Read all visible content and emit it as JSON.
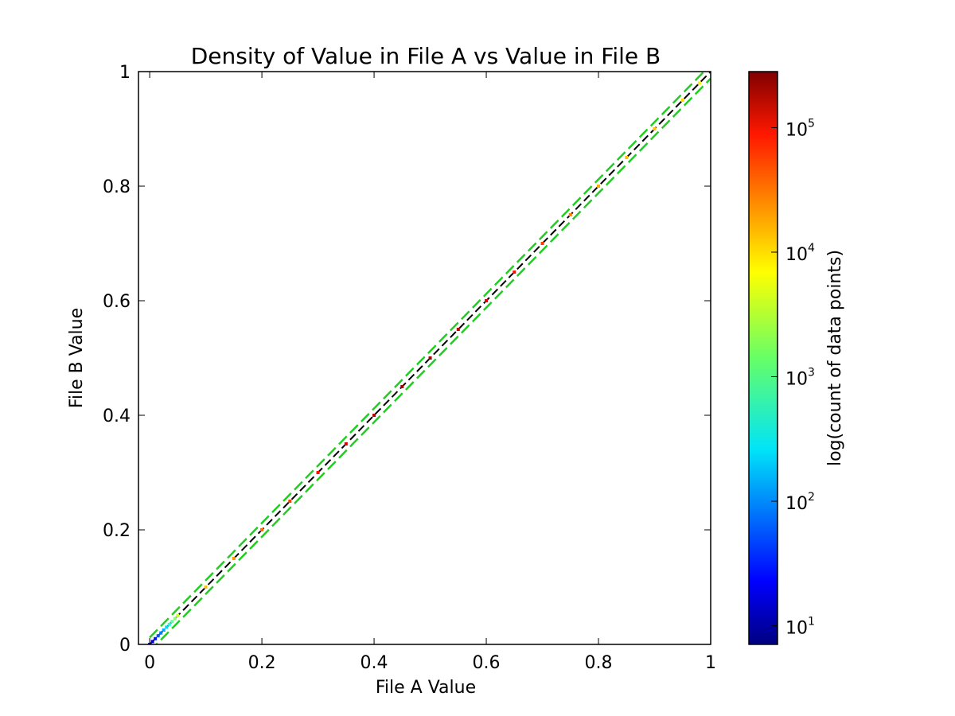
{
  "chart_data": {
    "type": "heatmap",
    "title": "Density of Value in File A vs Value in File B",
    "xlabel": "File A Value",
    "ylabel": "File B Value",
    "xlim": [
      -0.02,
      1.0
    ],
    "ylim": [
      0,
      1.0
    ],
    "x_ticks": [
      {
        "value": 0.0,
        "label": "0"
      },
      {
        "value": 0.2,
        "label": "0.2"
      },
      {
        "value": 0.4,
        "label": "0.4"
      },
      {
        "value": 0.6,
        "label": "0.6"
      },
      {
        "value": 0.8,
        "label": "0.8"
      },
      {
        "value": 1.0,
        "label": "1"
      }
    ],
    "y_ticks": [
      {
        "value": 0.0,
        "label": "0"
      },
      {
        "value": 0.2,
        "label": "0.2"
      },
      {
        "value": 0.4,
        "label": "0.4"
      },
      {
        "value": 0.6,
        "label": "0.6"
      },
      {
        "value": 0.8,
        "label": "0.8"
      },
      {
        "value": 1.0,
        "label": "1"
      }
    ],
    "grid": false,
    "reference_lines": [
      {
        "style": "dashed",
        "color": "#000000",
        "x": [
          0,
          1
        ],
        "y": [
          0,
          1
        ]
      },
      {
        "style": "dashed",
        "color": "#22cc22",
        "x": [
          0,
          1
        ],
        "y": [
          0.012,
          1.012
        ]
      },
      {
        "style": "dashed",
        "color": "#22cc22",
        "x": [
          0,
          1
        ],
        "y": [
          -0.012,
          0.988
        ]
      }
    ],
    "density": {
      "x": [
        0.0,
        0.005,
        0.01,
        0.015,
        0.02,
        0.025,
        0.03,
        0.035,
        0.04,
        0.045,
        0.05,
        0.1,
        0.15,
        0.2,
        0.25,
        0.3,
        0.35,
        0.4,
        0.45,
        0.5,
        0.55,
        0.6,
        0.65,
        0.7,
        0.75,
        0.8,
        0.85,
        0.9,
        0.95,
        0.98
      ],
      "log10_count": [
        1.0,
        1.2,
        1.5,
        1.8,
        2.0,
        2.2,
        2.4,
        2.7,
        3.0,
        3.2,
        3.5,
        4.0,
        4.2,
        4.4,
        4.6,
        4.8,
        5.0,
        5.2,
        5.3,
        5.3,
        5.2,
        5.0,
        4.8,
        4.6,
        4.3,
        4.1,
        4.0,
        4.0,
        3.9,
        3.8
      ]
    },
    "colorbar": {
      "label": "log(count of data points)",
      "colormap": "jet",
      "log_range": [
        0.85,
        5.45
      ],
      "ticks": [
        {
          "value": 1,
          "base": "10",
          "exp": "1"
        },
        {
          "value": 2,
          "base": "10",
          "exp": "2"
        },
        {
          "value": 3,
          "base": "10",
          "exp": "3"
        },
        {
          "value": 4,
          "base": "10",
          "exp": "4"
        },
        {
          "value": 5,
          "base": "10",
          "exp": "5"
        }
      ]
    }
  }
}
